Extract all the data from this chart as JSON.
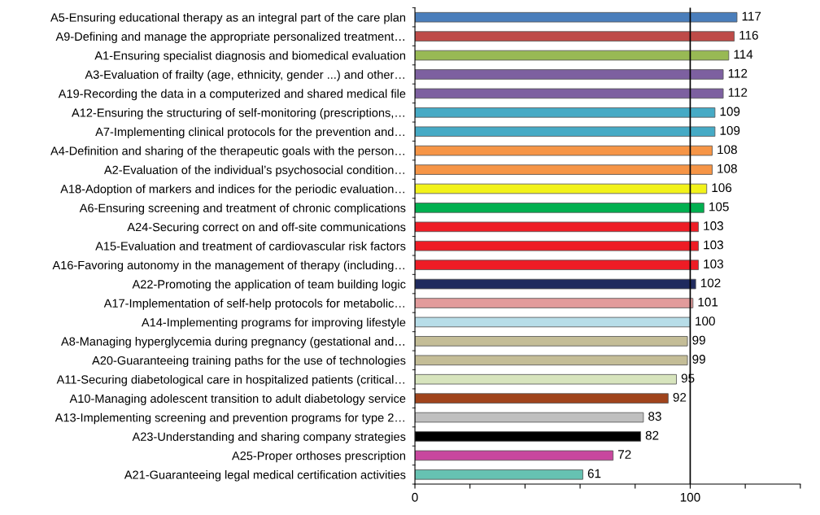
{
  "chart_data": {
    "type": "bar",
    "orientation": "horizontal",
    "categories": [
      "A5-Ensuring educational therapy as an integral part of the care plan",
      "A9-Defining and manage the appropriate personalized treatment…",
      "A1-Ensuring specialist diagnosis and biomedical evaluation",
      "A3-Evaluation of frailty (age, ethnicity, gender ...) and other…",
      "A19-Recording the data in a computerized and shared medical file",
      "A12-Ensuring the structuring of self-monitoring (prescriptions,…",
      "A7-Implementing clinical protocols for the prevention and…",
      "A4-Definition and sharing of the therapeutic goals with the person…",
      "A2-Evaluation of the individual’s psychosocial condition…",
      "A18-Adoption of markers and indices for the periodic evaluation…",
      "A6-Ensuring screening and treatment of chronic complications",
      "A24-Securing correct on and off-site communications",
      "A15-Evaluation and treatment of cardiovascular risk factors",
      "A16-Favoring autonomy in the management of therapy (including…",
      "A22-Promoting the application of team building logic",
      "A17-Implementation of self-help protocols for metabolic…",
      "A14-Implementing programs for improving lifestyle",
      "A8-Managing hyperglycemia during pregnancy (gestational and…",
      "A20-Guaranteeing training paths for the use of technologies",
      "A11-Securing diabetological care in hospitalized patients (critical…",
      "A10-Managing adolescent transition to adult diabetology service",
      "A13-Implementing screening and prevention programs for type 2…",
      "A23-Understanding and sharing company strategies",
      "A25-Proper orthoses prescription",
      "A21-Guaranteeing legal medical certification activities"
    ],
    "values": [
      117,
      116,
      114,
      112,
      112,
      109,
      109,
      108,
      108,
      106,
      105,
      103,
      103,
      103,
      102,
      101,
      100,
      99,
      99,
      95,
      92,
      83,
      82,
      72,
      61
    ],
    "colors": [
      "#4a7ebb",
      "#be4b48",
      "#98b954",
      "#7d60a0",
      "#7d60a0",
      "#46aac5",
      "#46aac5",
      "#f69546",
      "#f69546",
      "#f2f21a",
      "#00b050",
      "#ee1c25",
      "#ee1c25",
      "#ee1c25",
      "#1f2a5e",
      "#e29b9b",
      "#b7dde8",
      "#c4bd97",
      "#c4bd97",
      "#d7e4bd",
      "#a0441c",
      "#bfbfbf",
      "#000000",
      "#c8479e",
      "#66c2b2"
    ],
    "xlim": [
      0,
      140
    ],
    "xticks": [
      0,
      {
        "value": 20,
        "label": null
      },
      {
        "value": 40,
        "label": null
      },
      {
        "value": 60,
        "label": null
      },
      {
        "value": 80,
        "label": null
      },
      100,
      {
        "value": 120,
        "label": null
      },
      {
        "value": 140,
        "label": null
      }
    ],
    "ref_lines": [
      {
        "axis": "x",
        "value": 100,
        "color": "#000000"
      }
    ],
    "data_labels": true,
    "grid": false,
    "legend": false
  }
}
